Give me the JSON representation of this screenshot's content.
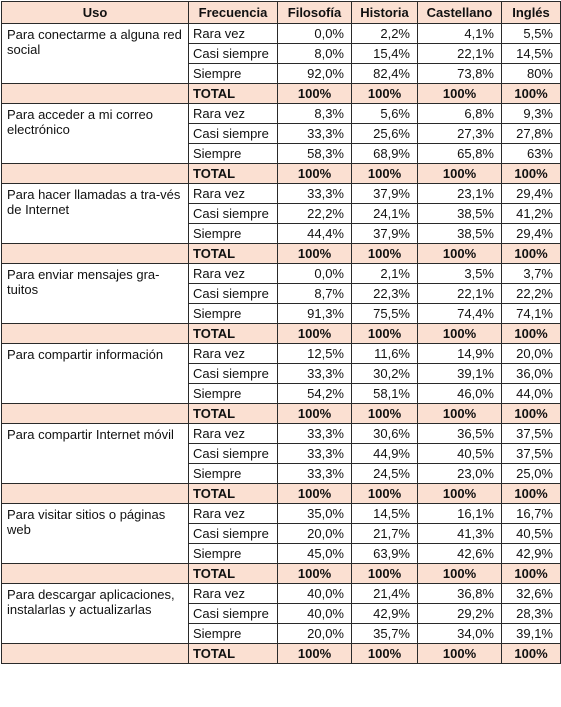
{
  "headers": [
    "Uso",
    "Frecuencia",
    "Filosofía",
    "Historia",
    "Castellano",
    "Inglés"
  ],
  "groups": [
    {
      "uso": "Para conectarme a alguna red social",
      "rows": [
        {
          "freq": "Rara vez",
          "values": [
            "0,0%",
            "2,2%",
            "4,1%",
            "5,5%"
          ]
        },
        {
          "freq": "Casi siempre",
          "values": [
            "8,0%",
            "15,4%",
            "22,1%",
            "14,5%"
          ]
        },
        {
          "freq": "Siempre",
          "values": [
            "92,0%",
            "82,4%",
            "73,8%",
            "80%"
          ]
        }
      ],
      "total": {
        "label": "TOTAL",
        "values": [
          "100%",
          "100%",
          "100%",
          "100%"
        ]
      }
    },
    {
      "uso": "Para acceder a mi correo electrónico",
      "rows": [
        {
          "freq": "Rara vez",
          "values": [
            "8,3%",
            "5,6%",
            "6,8%",
            "9,3%"
          ]
        },
        {
          "freq": "Casi siempre",
          "values": [
            "33,3%",
            "25,6%",
            "27,3%",
            "27,8%"
          ]
        },
        {
          "freq": "Siempre",
          "values": [
            "58,3%",
            "68,9%",
            "65,8%",
            "63%"
          ]
        }
      ],
      "total": {
        "label": "TOTAL",
        "values": [
          "100%",
          "100%",
          "100%",
          "100%"
        ]
      }
    },
    {
      "uso": "Para hacer llamadas a tra-vés de Internet",
      "rows": [
        {
          "freq": "Rara vez",
          "values": [
            "33,3%",
            "37,9%",
            "23,1%",
            "29,4%"
          ]
        },
        {
          "freq": "Casi siempre",
          "values": [
            "22,2%",
            "24,1%",
            "38,5%",
            "41,2%"
          ]
        },
        {
          "freq": "Siempre",
          "values": [
            "44,4%",
            "37,9%",
            "38,5%",
            "29,4%"
          ]
        }
      ],
      "total": {
        "label": "TOTAL",
        "values": [
          "100%",
          "100%",
          "100%",
          "100%"
        ]
      }
    },
    {
      "uso": "Para enviar mensajes gra-tuitos",
      "rows": [
        {
          "freq": "Rara vez",
          "values": [
            "0,0%",
            "2,1%",
            "3,5%",
            "3,7%"
          ]
        },
        {
          "freq": "Casi siempre",
          "values": [
            "8,7%",
            "22,3%",
            "22,1%",
            "22,2%"
          ]
        },
        {
          "freq": "Siempre",
          "values": [
            "91,3%",
            "75,5%",
            "74,4%",
            "74,1%"
          ]
        }
      ],
      "total": {
        "label": "TOTAL",
        "values": [
          "100%",
          "100%",
          "100%",
          "100%"
        ]
      }
    },
    {
      "uso": "Para compartir información",
      "rows": [
        {
          "freq": "Rara vez",
          "values": [
            "12,5%",
            "11,6%",
            "14,9%",
            "20,0%"
          ]
        },
        {
          "freq": "Casi siempre",
          "values": [
            "33,3%",
            "30,2%",
            "39,1%",
            "36,0%"
          ]
        },
        {
          "freq": "Siempre",
          "values": [
            "54,2%",
            "58,1%",
            "46,0%",
            "44,0%"
          ]
        }
      ],
      "total": {
        "label": "TOTAL",
        "values": [
          "100%",
          "100%",
          "100%",
          "100%"
        ]
      }
    },
    {
      "uso": "Para compartir Internet móvil",
      "rows": [
        {
          "freq": "Rara vez",
          "values": [
            "33,3%",
            "30,6%",
            "36,5%",
            "37,5%"
          ]
        },
        {
          "freq": "Casi siempre",
          "values": [
            "33,3%",
            "44,9%",
            "40,5%",
            "37,5%"
          ]
        },
        {
          "freq": "Siempre",
          "values": [
            "33,3%",
            "24,5%",
            "23,0%",
            "25,0%"
          ]
        }
      ],
      "total": {
        "label": "TOTAL",
        "values": [
          "100%",
          "100%",
          "100%",
          "100%"
        ]
      }
    },
    {
      "uso": "Para visitar sitios o páginas web",
      "rows": [
        {
          "freq": "Rara vez",
          "values": [
            "35,0%",
            "14,5%",
            "16,1%",
            "16,7%"
          ]
        },
        {
          "freq": "Casi siempre",
          "values": [
            "20,0%",
            "21,7%",
            "41,3%",
            "40,5%"
          ]
        },
        {
          "freq": "Siempre",
          "values": [
            "45,0%",
            "63,9%",
            "42,6%",
            "42,9%"
          ]
        }
      ],
      "total": {
        "label": "TOTAL",
        "values": [
          "100%",
          "100%",
          "100%",
          "100%"
        ]
      }
    },
    {
      "uso": "Para descargar aplicaciones, instalarlas y actualizarlas",
      "rows": [
        {
          "freq": "Rara vez",
          "values": [
            "40,0%",
            "21,4%",
            "36,8%",
            "32,6%"
          ]
        },
        {
          "freq": "Casi siempre",
          "values": [
            "40,0%",
            "42,9%",
            "29,2%",
            "28,3%"
          ]
        },
        {
          "freq": "Siempre",
          "values": [
            "20,0%",
            "35,7%",
            "34,0%",
            "39,1%"
          ]
        }
      ],
      "total": {
        "label": "TOTAL",
        "values": [
          "100%",
          "100%",
          "100%",
          "100%"
        ]
      }
    }
  ]
}
